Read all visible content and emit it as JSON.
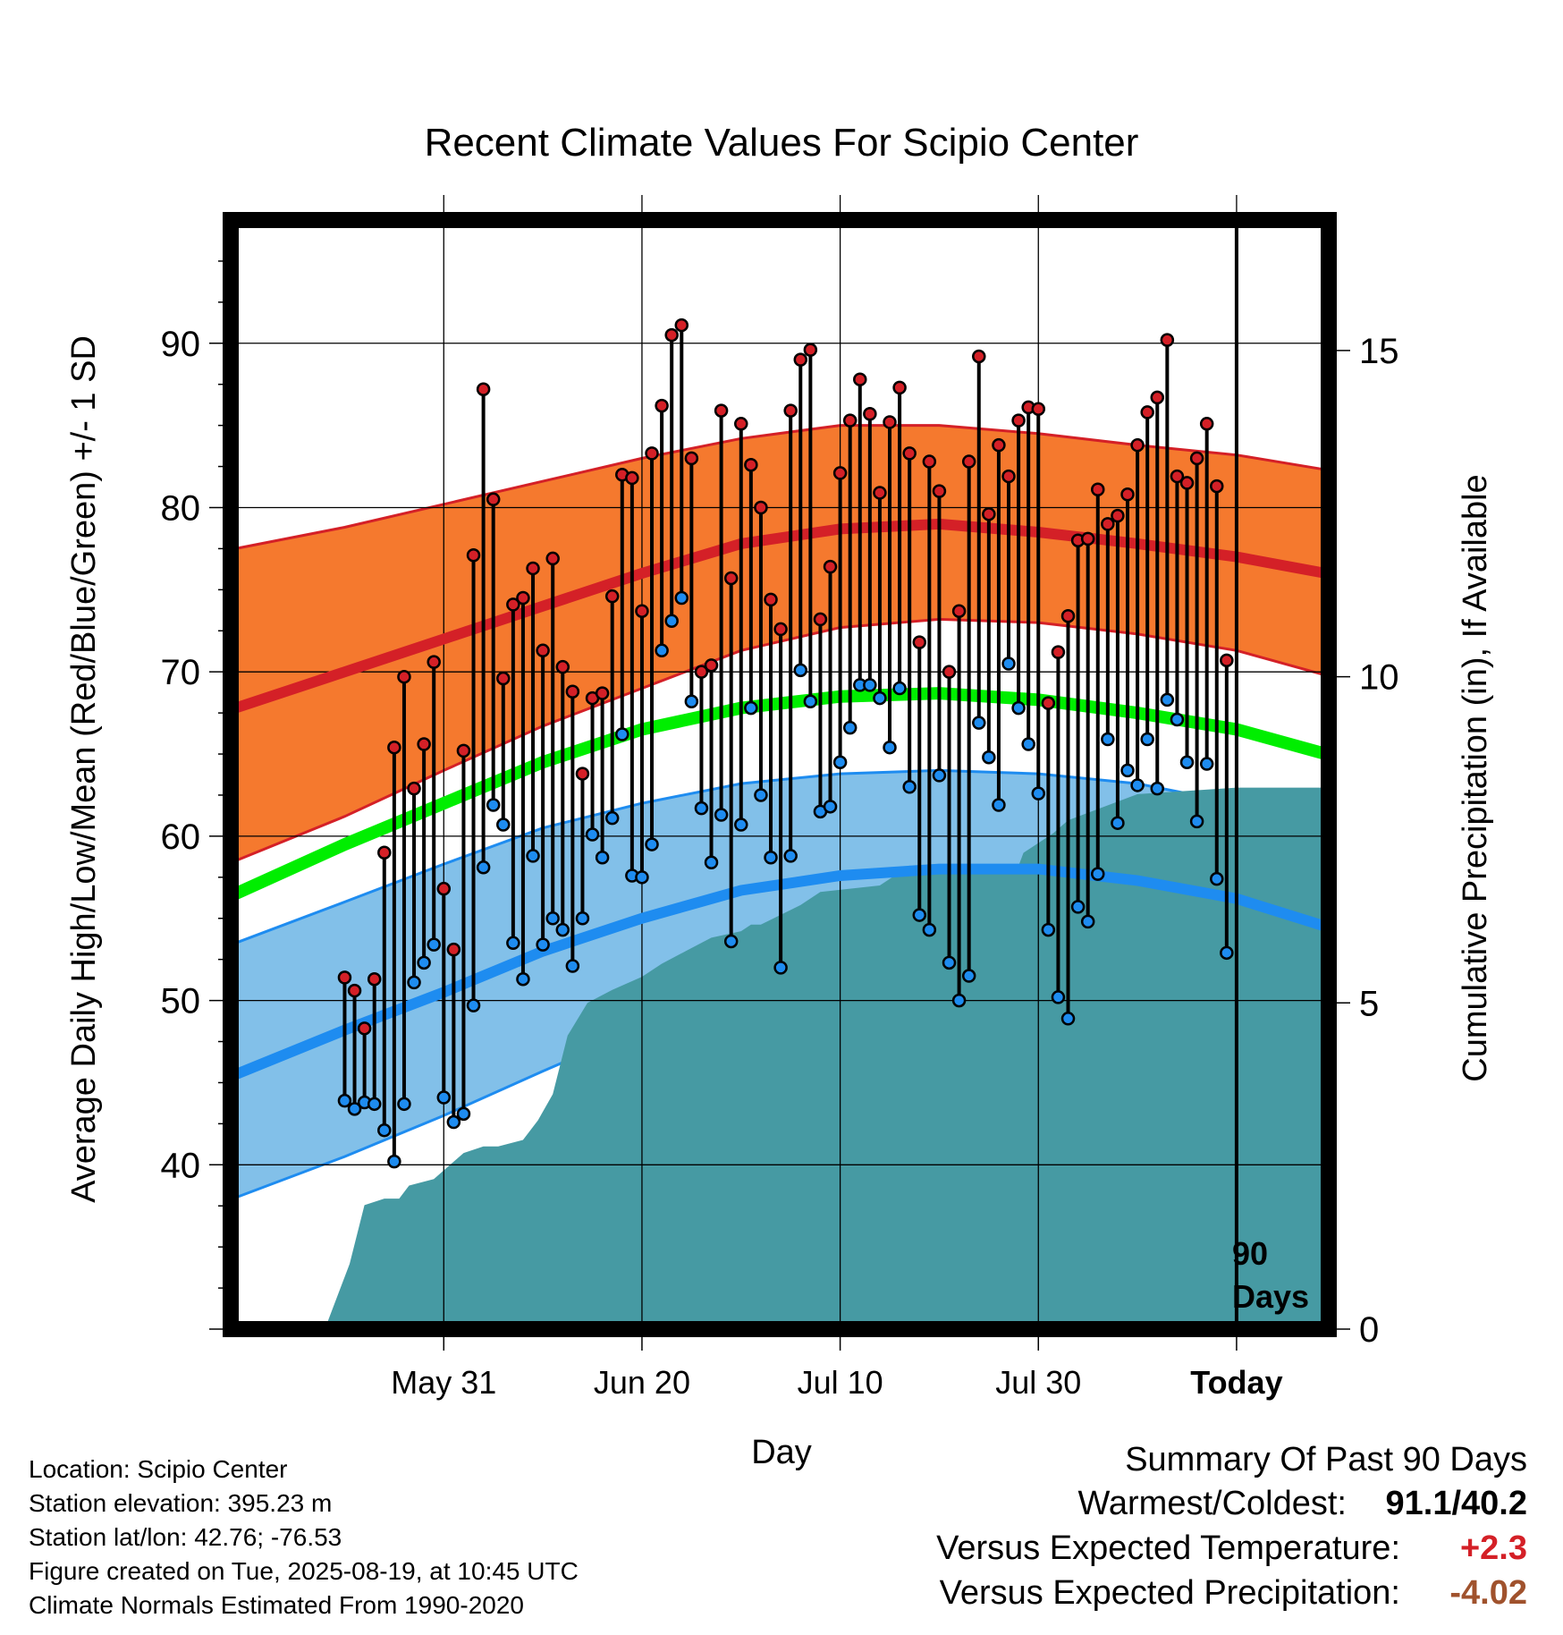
{
  "chart_data": {
    "type": "line",
    "title": "Recent Climate Values For Scipio Center",
    "xlabel": "Day",
    "ylabel": "Average Daily High/Low/Mean (Red/Blue/Green) +/- 1 SD",
    "y2label": "Cumulative Precipitation (in), If Available",
    "ylim": [
      30,
      97.5
    ],
    "y2lim": [
      0,
      17
    ],
    "yticks": [
      40,
      50,
      60,
      70,
      80,
      90
    ],
    "y2ticks": [
      0,
      5,
      10,
      15
    ],
    "xlim": [
      -101.5,
      9.3
    ],
    "xticks": [
      {
        "label": "May 31",
        "day": -80
      },
      {
        "label": "Jun 20",
        "day": -60
      },
      {
        "label": "Jul 10",
        "day": -40
      },
      {
        "label": "Jul 30",
        "day": -20
      },
      {
        "label": "Today",
        "day": 0
      }
    ],
    "grid": true,
    "today_marker": {
      "day": 0,
      "label_line1": "90",
      "label_line2": "Days"
    },
    "normals": {
      "days": [
        -101,
        -90,
        -80,
        -70,
        -60,
        -50,
        -40,
        -30,
        -20,
        -10,
        0,
        9
      ],
      "high_mean": [
        67.8,
        70.0,
        72.0,
        74.0,
        76.0,
        77.8,
        78.7,
        79.0,
        78.5,
        77.8,
        77.0,
        76.0
      ],
      "high_upper": [
        77.5,
        78.8,
        80.2,
        81.6,
        83.0,
        84.2,
        85.0,
        85.0,
        84.5,
        83.8,
        83.2,
        82.3
      ],
      "high_lower": [
        58.5,
        61.2,
        64.0,
        66.7,
        69.0,
        71.3,
        72.7,
        73.2,
        73.0,
        72.3,
        71.3,
        69.8
      ],
      "mean_line": [
        56.5,
        59.5,
        62.0,
        64.5,
        66.5,
        67.8,
        68.5,
        68.7,
        68.3,
        67.5,
        66.5,
        65.0
      ],
      "low_mean": [
        45.5,
        48.2,
        50.5,
        53.0,
        55.0,
        56.7,
        57.6,
        58.0,
        58.0,
        57.3,
        56.2,
        54.5
      ],
      "low_upper": [
        53.5,
        56.0,
        58.3,
        60.5,
        62.0,
        63.2,
        63.8,
        64.0,
        63.8,
        63.2,
        62.0,
        61.0
      ],
      "low_lower": [
        38.0,
        40.5,
        43.0,
        45.7,
        48.3,
        50.5,
        51.8,
        52.3,
        52.3,
        51.8,
        50.3,
        48.3
      ]
    },
    "colors": {
      "high_band": "#f5792e",
      "high_line": "#d42027",
      "mean_line": "#00ee00",
      "low_band": "#82c0e9",
      "low_line": "#1e8cf0",
      "precip": "#469aa3",
      "high_point": "#d42027",
      "low_point": "#1e8cf0"
    },
    "observations": {
      "start_day": -90,
      "highs": [
        51.4,
        50.6,
        48.3,
        51.3,
        59.0,
        65.4,
        69.7,
        62.9,
        65.6,
        70.6,
        56.8,
        53.1,
        65.2,
        77.1,
        87.2,
        80.5,
        69.6,
        74.1,
        74.5,
        76.3,
        71.3,
        76.9,
        70.3,
        68.8,
        63.8,
        68.4,
        68.7,
        74.6,
        82.0,
        81.8,
        73.7,
        83.3,
        86.2,
        90.5,
        91.1,
        83.0,
        70.0,
        70.4,
        85.9,
        75.7,
        85.1,
        82.6,
        80.0,
        74.4,
        72.6,
        85.9,
        89.0,
        89.6,
        73.2,
        76.4,
        82.1,
        85.3,
        87.8,
        85.7,
        80.9,
        85.2,
        87.3,
        83.3,
        71.8,
        82.8,
        81.0,
        70.0,
        73.7,
        82.8,
        89.2,
        79.6,
        83.8,
        81.9,
        85.3,
        86.1,
        86.0,
        68.1,
        71.2,
        73.4,
        78.0,
        78.1,
        81.1,
        79.0,
        79.5,
        80.8,
        83.8,
        85.8,
        86.7,
        90.2,
        81.9,
        81.5,
        83.0,
        85.1,
        81.3,
        70.7
      ],
      "lows": [
        43.9,
        43.4,
        43.8,
        43.7,
        42.1,
        40.2,
        43.7,
        51.1,
        52.3,
        53.4,
        44.1,
        42.6,
        43.1,
        49.7,
        58.1,
        61.9,
        60.7,
        53.5,
        51.3,
        58.8,
        53.4,
        55.0,
        54.3,
        52.1,
        55.0,
        60.1,
        58.7,
        61.1,
        66.2,
        57.6,
        57.5,
        59.5,
        71.3,
        73.1,
        74.5,
        68.2,
        61.7,
        58.4,
        61.3,
        53.6,
        60.7,
        67.8,
        62.5,
        58.7,
        52.0,
        58.8,
        70.1,
        68.2,
        61.5,
        61.8,
        64.5,
        66.6,
        69.2,
        69.2,
        68.4,
        65.4,
        69.0,
        63.0,
        55.2,
        54.3,
        63.7,
        52.3,
        50.0,
        51.5,
        66.9,
        64.8,
        61.9,
        70.5,
        67.8,
        65.6,
        62.6,
        54.3,
        50.2,
        48.9,
        55.7,
        54.8,
        57.7,
        65.9,
        60.8,
        64.0,
        63.1,
        65.9,
        62.9,
        68.3,
        67.1,
        64.5,
        60.9,
        64.4,
        57.4,
        52.9
      ]
    },
    "precip_cumulative": {
      "days": [
        -92,
        -89.5,
        -88,
        -86,
        -84.5,
        -83.5,
        -81,
        -78,
        -76,
        -74.5,
        -72,
        -70.5,
        -69,
        -67.5,
        -65.5,
        -63,
        -60,
        -58,
        -55.5,
        -53,
        -50,
        -49,
        -48,
        -44,
        -42,
        -36,
        -34,
        -30,
        -22,
        -21.5,
        -19.5,
        -18.5,
        -17,
        -10,
        0,
        9
      ],
      "values": [
        0,
        1.0,
        1.9,
        2.0,
        2.0,
        2.2,
        2.3,
        2.7,
        2.8,
        2.8,
        2.9,
        3.2,
        3.6,
        4.5,
        5.0,
        5.2,
        5.4,
        5.6,
        5.8,
        6.0,
        6.1,
        6.2,
        6.2,
        6.5,
        6.7,
        6.8,
        7.0,
        7.1,
        7.1,
        7.3,
        7.5,
        7.6,
        7.8,
        8.2,
        8.3,
        8.3
      ]
    }
  },
  "summary": {
    "heading": "Summary Of Past 90 Days",
    "warmest_coldest_label": "Warmest/Coldest:",
    "warmest_coldest_value": "91.1/40.2",
    "temp_label": "Versus Expected Temperature:",
    "temp_value": "+2.3",
    "temp_color": "#d42027",
    "precip_label": "Versus Expected Precipitation:",
    "precip_value": "-4.02",
    "precip_color": "#a0522d"
  },
  "info": {
    "location": "Location: Scipio Center",
    "elevation": "Station elevation: 395.23 m",
    "latlon": "Station lat/lon: 42.76; -76.53",
    "created": "Figure created on Tue, 2025-08-19, at 10:45 UTC",
    "normals_period": "Climate Normals Estimated From 1990-2020"
  }
}
